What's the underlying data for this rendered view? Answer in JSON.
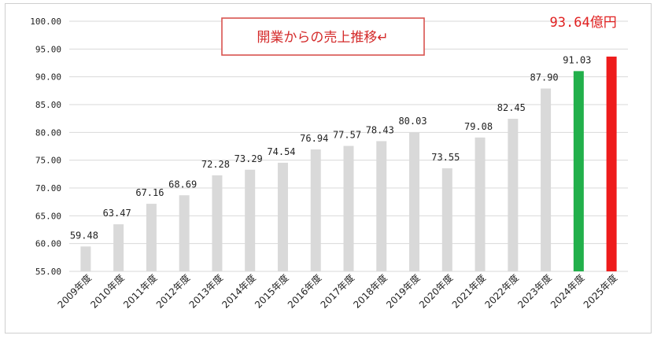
{
  "chart_data": {
    "type": "bar",
    "title": "開業からの売上推移↵",
    "categories": [
      "2009年度",
      "2010年度",
      "2011年度",
      "2012年度",
      "2013年度",
      "2014年度",
      "2015年度",
      "2016年度",
      "2017年度",
      "2018年度",
      "2019年度",
      "2020年度",
      "2021年度",
      "2022年度",
      "2023年度",
      "2024年度",
      "2025年度"
    ],
    "values": [
      59.48,
      63.47,
      67.16,
      68.69,
      72.28,
      73.29,
      74.54,
      76.94,
      77.57,
      78.43,
      80.03,
      73.55,
      79.08,
      82.45,
      87.9,
      91.03,
      93.64
    ],
    "data_labels": [
      "59.48",
      "63.47",
      "67.16",
      "68.69",
      "72.28",
      "73.29",
      "74.54",
      "76.94",
      "77.57",
      "78.43",
      "80.03",
      "73.55",
      "79.08",
      "82.45",
      "87.90",
      "91.03",
      "93.64億円"
    ],
    "ylim": [
      55,
      100
    ],
    "yticks": [
      "55.00",
      "60.00",
      "65.00",
      "70.00",
      "75.00",
      "80.00",
      "85.00",
      "90.00",
      "95.00",
      "100.00"
    ],
    "grid": true,
    "colors": {
      "default": "#d9d9d9",
      "2024年度": "#22b04b",
      "2025年度": "#ee1c1c",
      "grid": "#d9d9d9",
      "title_border": "#d9534f"
    }
  }
}
